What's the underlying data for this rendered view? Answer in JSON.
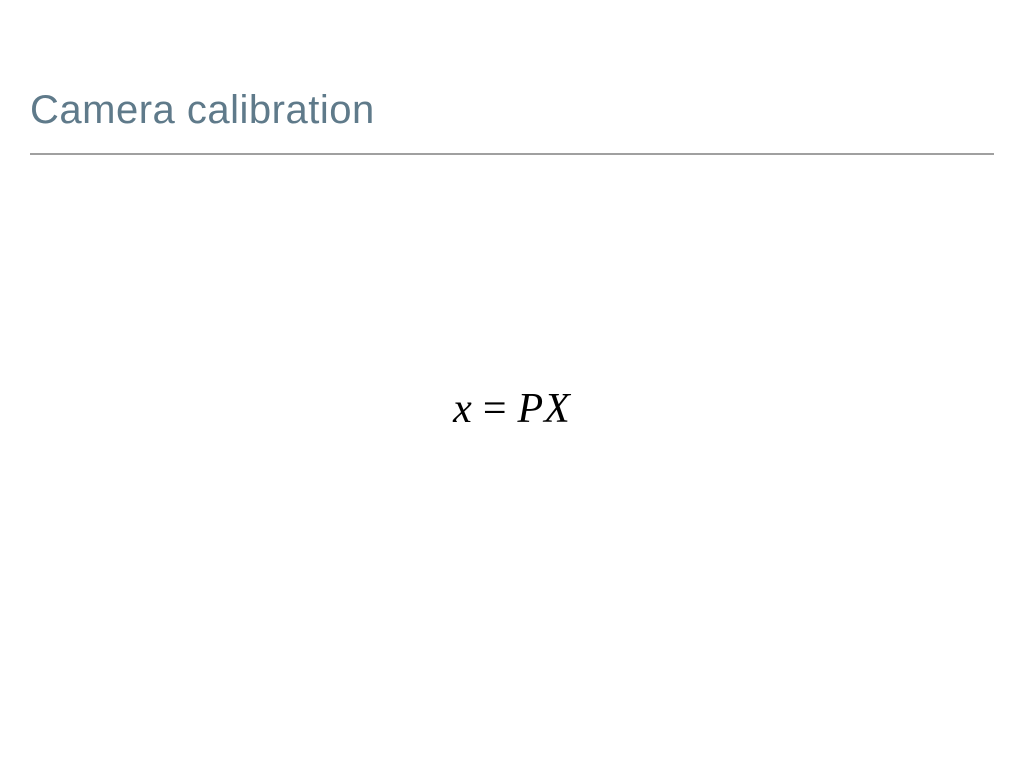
{
  "slide": {
    "title": "Camera calibration",
    "title_color": "#5f7a8a",
    "title_fontsize": 40,
    "underline_color": "#a0a0a0",
    "background_color": "#ffffff"
  },
  "equation": {
    "lhs": "x",
    "eq": "=",
    "rhs_a": "P",
    "rhs_b": "X",
    "fontsize": 42,
    "color": "#000000",
    "font_family": "Times New Roman"
  }
}
